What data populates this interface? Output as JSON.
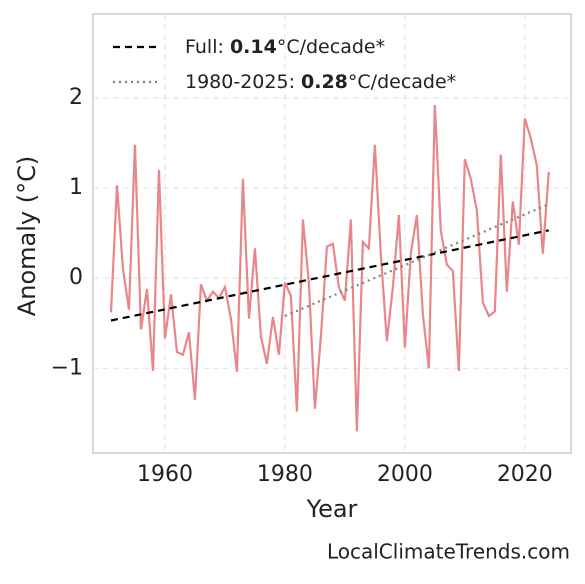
{
  "chart_data": {
    "type": "line",
    "xlabel": "Year",
    "ylabel": "Anomaly (°C)",
    "watermark": "LocalClimateTrends.com",
    "x": [
      1951,
      1952,
      1953,
      1954,
      1955,
      1956,
      1957,
      1958,
      1959,
      1960,
      1961,
      1962,
      1963,
      1964,
      1965,
      1966,
      1967,
      1968,
      1969,
      1970,
      1971,
      1972,
      1973,
      1974,
      1975,
      1976,
      1977,
      1978,
      1979,
      1980,
      1981,
      1982,
      1983,
      1984,
      1985,
      1986,
      1987,
      1988,
      1989,
      1990,
      1991,
      1992,
      1993,
      1994,
      1995,
      1996,
      1997,
      1998,
      1999,
      2000,
      2001,
      2002,
      2003,
      2004,
      2005,
      2006,
      2007,
      2008,
      2009,
      2010,
      2011,
      2012,
      2013,
      2014,
      2015,
      2016,
      2017,
      2018,
      2019,
      2020,
      2021,
      2022,
      2023,
      2024
    ],
    "series": [
      {
        "color": "#e8868a",
        "values": [
          -0.38,
          1.03,
          0.1,
          -0.35,
          1.48,
          -0.57,
          -0.12,
          -1.03,
          1.2,
          -0.67,
          -0.18,
          -0.82,
          -0.85,
          -0.6,
          -1.35,
          -0.07,
          -0.25,
          -0.15,
          -0.22,
          -0.1,
          -0.45,
          -1.04,
          1.1,
          -0.45,
          0.33,
          -0.65,
          -0.95,
          -0.43,
          -0.85,
          -0.05,
          -0.2,
          -1.48,
          0.65,
          -0.05,
          -1.45,
          -0.65,
          0.35,
          0.38,
          -0.1,
          -0.25,
          0.65,
          -1.7,
          0.4,
          0.33,
          1.48,
          0.25,
          -0.7,
          -0.1,
          0.7,
          -0.77,
          0.28,
          0.7,
          -0.4,
          -1.0,
          1.92,
          0.52,
          0.15,
          0.08,
          -1.03,
          1.32,
          1.1,
          0.75,
          -0.27,
          -0.42,
          -0.37,
          1.37,
          -0.15,
          0.85,
          0.37,
          1.77,
          1.55,
          1.25,
          0.27,
          1.18
        ]
      },
      {
        "name": "Full: 0.14°C/decade*",
        "color": "#000000",
        "dash": "7,5",
        "x": [
          1951,
          2024
        ],
        "values": [
          -0.47,
          0.53
        ]
      },
      {
        "name": "1980-2025: 0.28°C/decade*",
        "color": "#808080",
        "dash": "2,4",
        "x": [
          1980,
          2024
        ],
        "values": [
          -0.42,
          0.82
        ]
      }
    ],
    "xlim": [
      1948,
      2027.7
    ],
    "xticks": [
      1960,
      1980,
      2000,
      2020
    ],
    "ylim": [
      -1.94,
      2.93
    ],
    "yticks": [
      {
        "value": -1,
        "label": "−1"
      },
      0,
      1,
      2
    ],
    "grid": true,
    "legend": "upper-left"
  }
}
